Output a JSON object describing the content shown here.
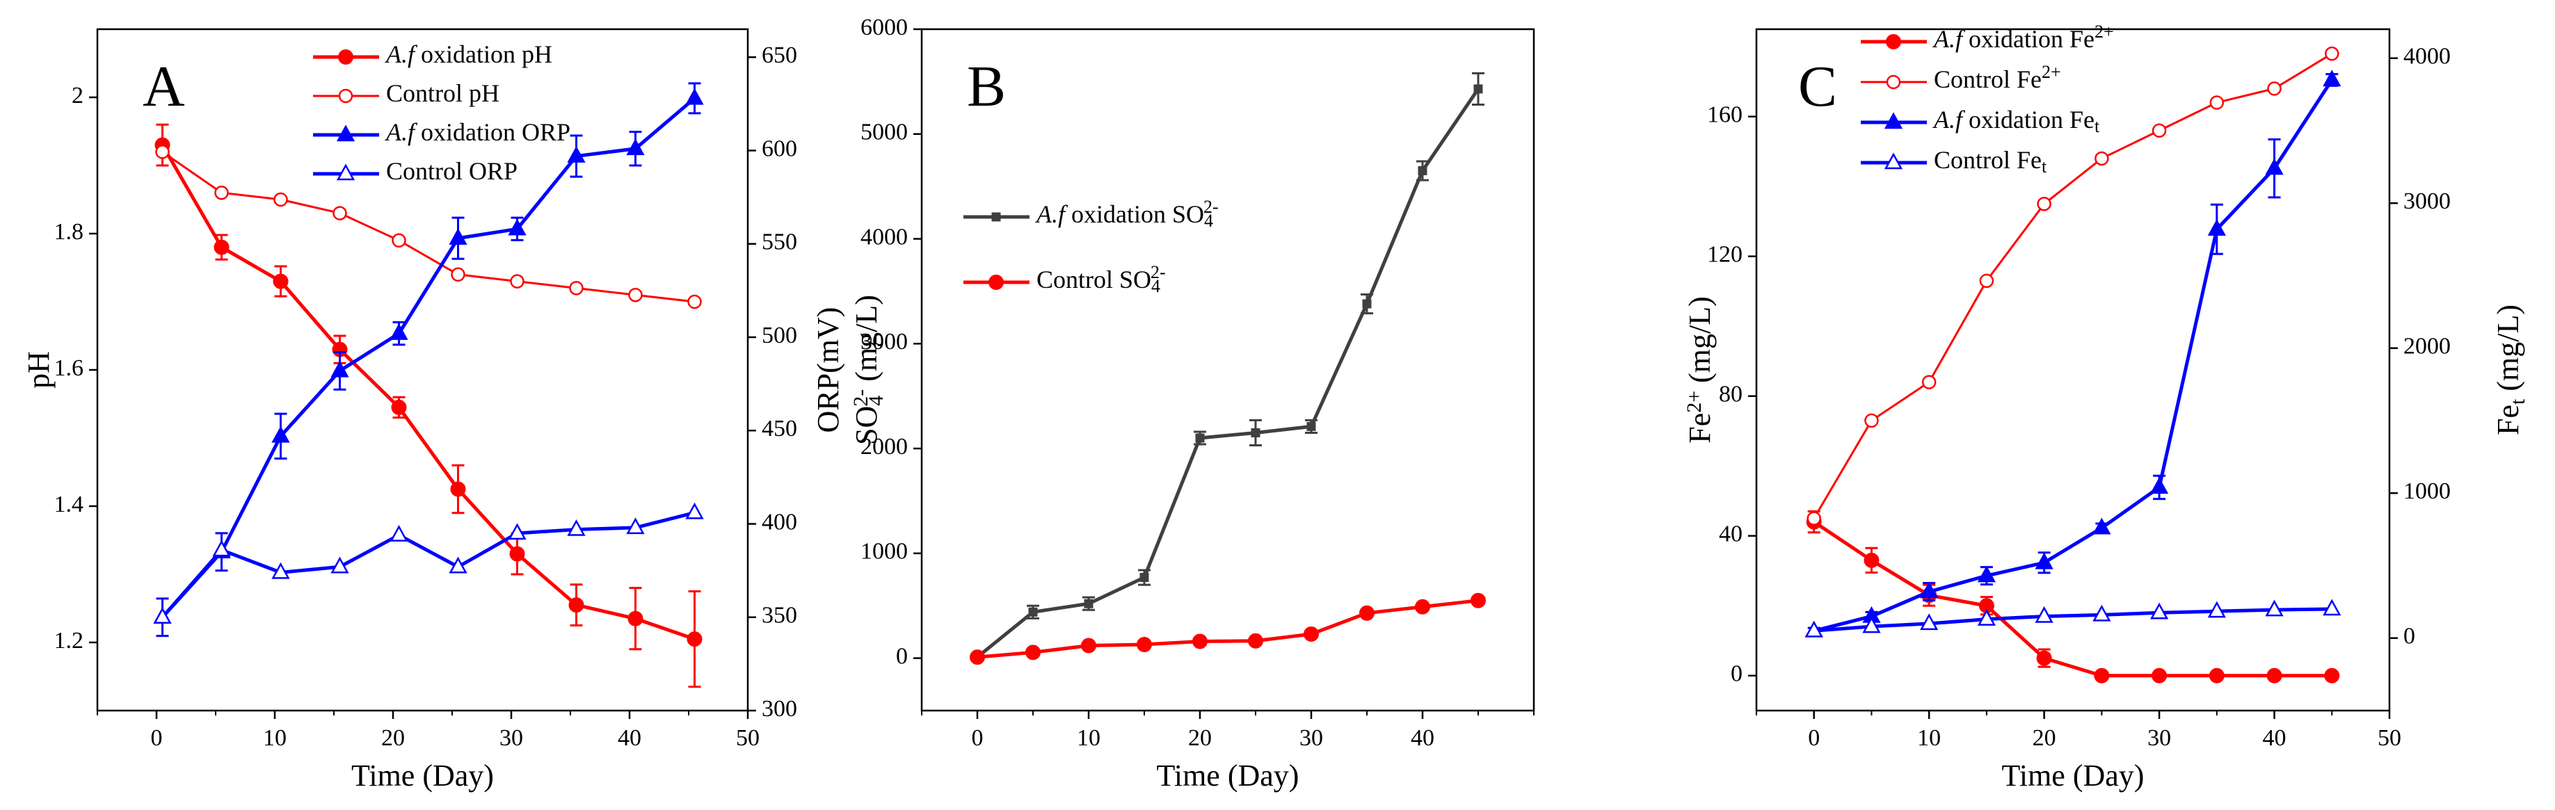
{
  "chart_data": [
    {
      "type": "line",
      "panel_label": "A",
      "xlabel": "Time (Day)",
      "ylabel_left": "pH",
      "ylabel_right": "ORP(mV)",
      "xlim": [
        -5,
        50
      ],
      "ylim_left": [
        1.1,
        2.1
      ],
      "ylim_right": [
        300,
        665
      ],
      "x_ticks": [
        0,
        10,
        20,
        30,
        40,
        50
      ],
      "y_ticks_left": [
        1.2,
        1.4,
        1.6,
        1.8,
        2.0
      ],
      "y_ticks_right": [
        300,
        350,
        400,
        450,
        500,
        550,
        600,
        650
      ],
      "legend_position": "top-center",
      "series": [
        {
          "name_italic": "A.f",
          "name_rest": " oxidation pH",
          "axis": "left",
          "color": "#ff0000",
          "marker": "filled-circle",
          "x": [
            0.5,
            5.5,
            10.5,
            15.5,
            20.5,
            25.5,
            30.5,
            35.5,
            40.5,
            45.5
          ],
          "y": [
            1.93,
            1.78,
            1.73,
            1.63,
            1.545,
            1.425,
            1.33,
            1.255,
            1.235,
            1.205
          ],
          "err": [
            0.03,
            0.018,
            0.022,
            0.02,
            0.015,
            0.035,
            0.03,
            0.03,
            0.045,
            0.07
          ]
        },
        {
          "name_italic": "",
          "name_rest": "Control pH",
          "axis": "left",
          "color": "#ff0000",
          "marker": "open-circle",
          "x": [
            0.5,
            5.5,
            10.5,
            15.5,
            20.5,
            25.5,
            30.5,
            35.5,
            40.5,
            45.5
          ],
          "y": [
            1.92,
            1.86,
            1.85,
            1.83,
            1.79,
            1.74,
            1.73,
            1.72,
            1.71,
            1.7
          ],
          "err": []
        },
        {
          "name_italic": "A.f",
          "name_rest": " oxidation ORP",
          "axis": "right",
          "color": "#0000ff",
          "marker": "filled-triangle",
          "x": [
            0.5,
            5.5,
            10.5,
            15.5,
            20.5,
            25.5,
            30.5,
            35.5,
            40.5,
            45.5
          ],
          "y": [
            350,
            385,
            447,
            482,
            502,
            553,
            558,
            597,
            601,
            628
          ],
          "err": [
            10,
            10,
            12,
            10,
            6,
            11,
            6,
            11,
            9,
            8
          ]
        },
        {
          "name_italic": "",
          "name_rest": "Control ORP",
          "axis": "right",
          "color": "#0000ff",
          "marker": "open-triangle",
          "x": [
            0.5,
            5.5,
            10.5,
            15.5,
            20.5,
            25.5,
            30.5,
            35.5,
            40.5,
            45.5
          ],
          "y": [
            350,
            386,
            374,
            377,
            394,
            377,
            395,
            397,
            398,
            406
          ],
          "err": []
        }
      ]
    },
    {
      "type": "line",
      "panel_label": "B",
      "xlabel": "Time (Day)",
      "ylabel_main": "SO",
      "ylabel_sub": "4",
      "ylabel_sup": "2-",
      "ylabel_rest": " (mg/L)",
      "xlim": [
        -5,
        50
      ],
      "ylim": [
        -500,
        6000
      ],
      "x_ticks": [
        0,
        10,
        20,
        30,
        40
      ],
      "y_ticks": [
        0,
        1000,
        2000,
        3000,
        4000,
        5000,
        6000
      ],
      "legend_position": "upper-left",
      "series": [
        {
          "name_italic": "A.f",
          "name_rest": " oxidation SO",
          "name_sub": "4",
          "name_sup": "2-",
          "color": "#404040",
          "marker": "filled-square",
          "x": [
            0,
            5,
            10,
            15,
            20,
            25,
            30,
            35,
            40,
            45
          ],
          "y": [
            10,
            440,
            520,
            770,
            2100,
            2150,
            2210,
            3380,
            4650,
            5430
          ],
          "err": [
            25,
            60,
            60,
            70,
            60,
            120,
            60,
            90,
            90,
            150
          ]
        },
        {
          "name_italic": "",
          "name_rest": "Control  SO",
          "name_sub": "4",
          "name_sup": "2-",
          "color": "#ff0000",
          "marker": "filled-circle",
          "x": [
            0,
            5,
            10,
            15,
            20,
            25,
            30,
            35,
            40,
            45
          ],
          "y": [
            10,
            55,
            120,
            130,
            160,
            165,
            230,
            430,
            490,
            550
          ],
          "err": []
        }
      ]
    },
    {
      "type": "line",
      "panel_label": "C",
      "xlabel": "Time (Day)",
      "ylabel_left_main": "Fe",
      "ylabel_left_sup": "2+",
      "ylabel_left_rest": " (mg/L)",
      "ylabel_right_main": "Fe",
      "ylabel_right_sub": "t",
      "ylabel_right_rest": " (mg/L)",
      "xlim": [
        -5,
        50
      ],
      "ylim_left": [
        -10,
        185
      ],
      "ylim_right": [
        -500,
        4200
      ],
      "x_ticks": [
        0,
        10,
        20,
        30,
        40,
        50
      ],
      "y_ticks_left": [
        0,
        40,
        80,
        120,
        160
      ],
      "y_ticks_right": [
        0,
        1000,
        2000,
        3000,
        4000
      ],
      "legend_position": "top-left",
      "series": [
        {
          "name_italic": "A.f",
          "name_rest": " oxidation Fe",
          "name_sub": "",
          "name_sup": "2+",
          "axis": "left",
          "color": "#ff0000",
          "marker": "filled-circle",
          "x": [
            0,
            5,
            10,
            15,
            20,
            25,
            30,
            35,
            40,
            45
          ],
          "y": [
            44,
            33,
            23,
            20,
            5,
            0,
            0,
            0,
            0,
            0
          ],
          "err": [
            3,
            3.5,
            3,
            2.5,
            2.5,
            0,
            0,
            0,
            0,
            0
          ]
        },
        {
          "name_italic": "",
          "name_rest": "Control Fe",
          "name_sub": "",
          "name_sup": "2+",
          "axis": "left",
          "color": "#ff0000",
          "marker": "open-circle",
          "x": [
            0,
            5,
            10,
            15,
            20,
            25,
            30,
            35,
            40,
            45
          ],
          "y": [
            45,
            73,
            84,
            113,
            135,
            148,
            156,
            164,
            168,
            178
          ],
          "err": []
        },
        {
          "name_italic": "A.f",
          "name_rest": " oxidation Fe",
          "name_sub": "t",
          "name_sup": "",
          "axis": "right",
          "color": "#0000ff",
          "marker": "filled-triangle",
          "x": [
            0,
            5,
            10,
            15,
            20,
            25,
            30,
            35,
            40,
            45
          ],
          "y": [
            50,
            150,
            320,
            430,
            520,
            760,
            1040,
            2820,
            3240,
            3850
          ],
          "err": [
            20,
            30,
            60,
            60,
            70,
            30,
            80,
            170,
            200,
            40
          ]
        },
        {
          "name_italic": "",
          "name_rest": "Control Fe",
          "name_sub": "t",
          "name_sup": "",
          "axis": "right",
          "color": "#0000ff",
          "marker": "open-triangle",
          "x": [
            0,
            5,
            10,
            15,
            20,
            25,
            30,
            35,
            40,
            45
          ],
          "y": [
            50,
            80,
            100,
            130,
            150,
            160,
            175,
            185,
            195,
            200
          ],
          "err": []
        }
      ]
    }
  ]
}
